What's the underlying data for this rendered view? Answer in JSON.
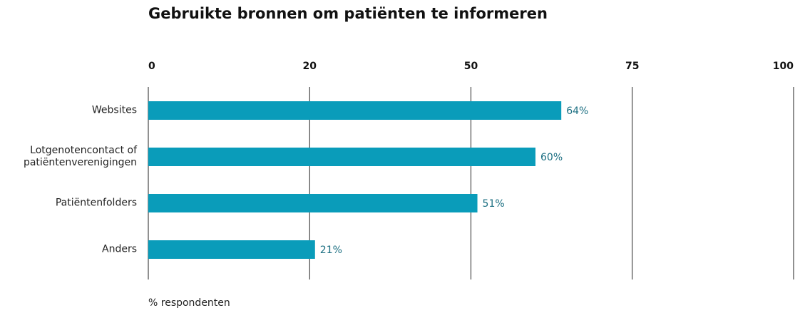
{
  "chart_data": {
    "type": "bar",
    "orientation": "horizontal",
    "title": "Gebruikte bronnen om patiënten te informeren",
    "categories": [
      "Websites",
      "Lotgenotencontact of patiëntenverenigingen",
      "Patiëntenfolders",
      "Anders"
    ],
    "values": [
      64,
      60,
      51,
      21
    ],
    "value_labels": [
      "64%",
      "60%",
      "51%",
      "21%"
    ],
    "color": "#0a9cba",
    "xlim": [
      0,
      100
    ],
    "xticks": [
      0,
      20,
      50,
      75,
      100
    ],
    "grid": true,
    "xlabel": "% respondenten"
  }
}
